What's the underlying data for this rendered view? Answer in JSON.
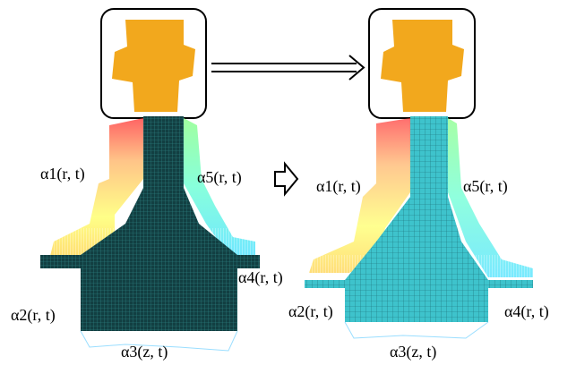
{
  "left": {
    "alpha1": "α1(r, t)",
    "alpha5": "α5(r, t)",
    "alpha4": "α4(r, t)",
    "alpha2": "α2(r, t)",
    "alpha3": "α3(z, t)"
  },
  "right": {
    "alpha1": "α1(r, t)",
    "alpha5": "α5(r, t)",
    "alpha2": "α2(r, t)",
    "alpha4": "α4(r, t)",
    "alpha3": "α3(z, t)"
  }
}
